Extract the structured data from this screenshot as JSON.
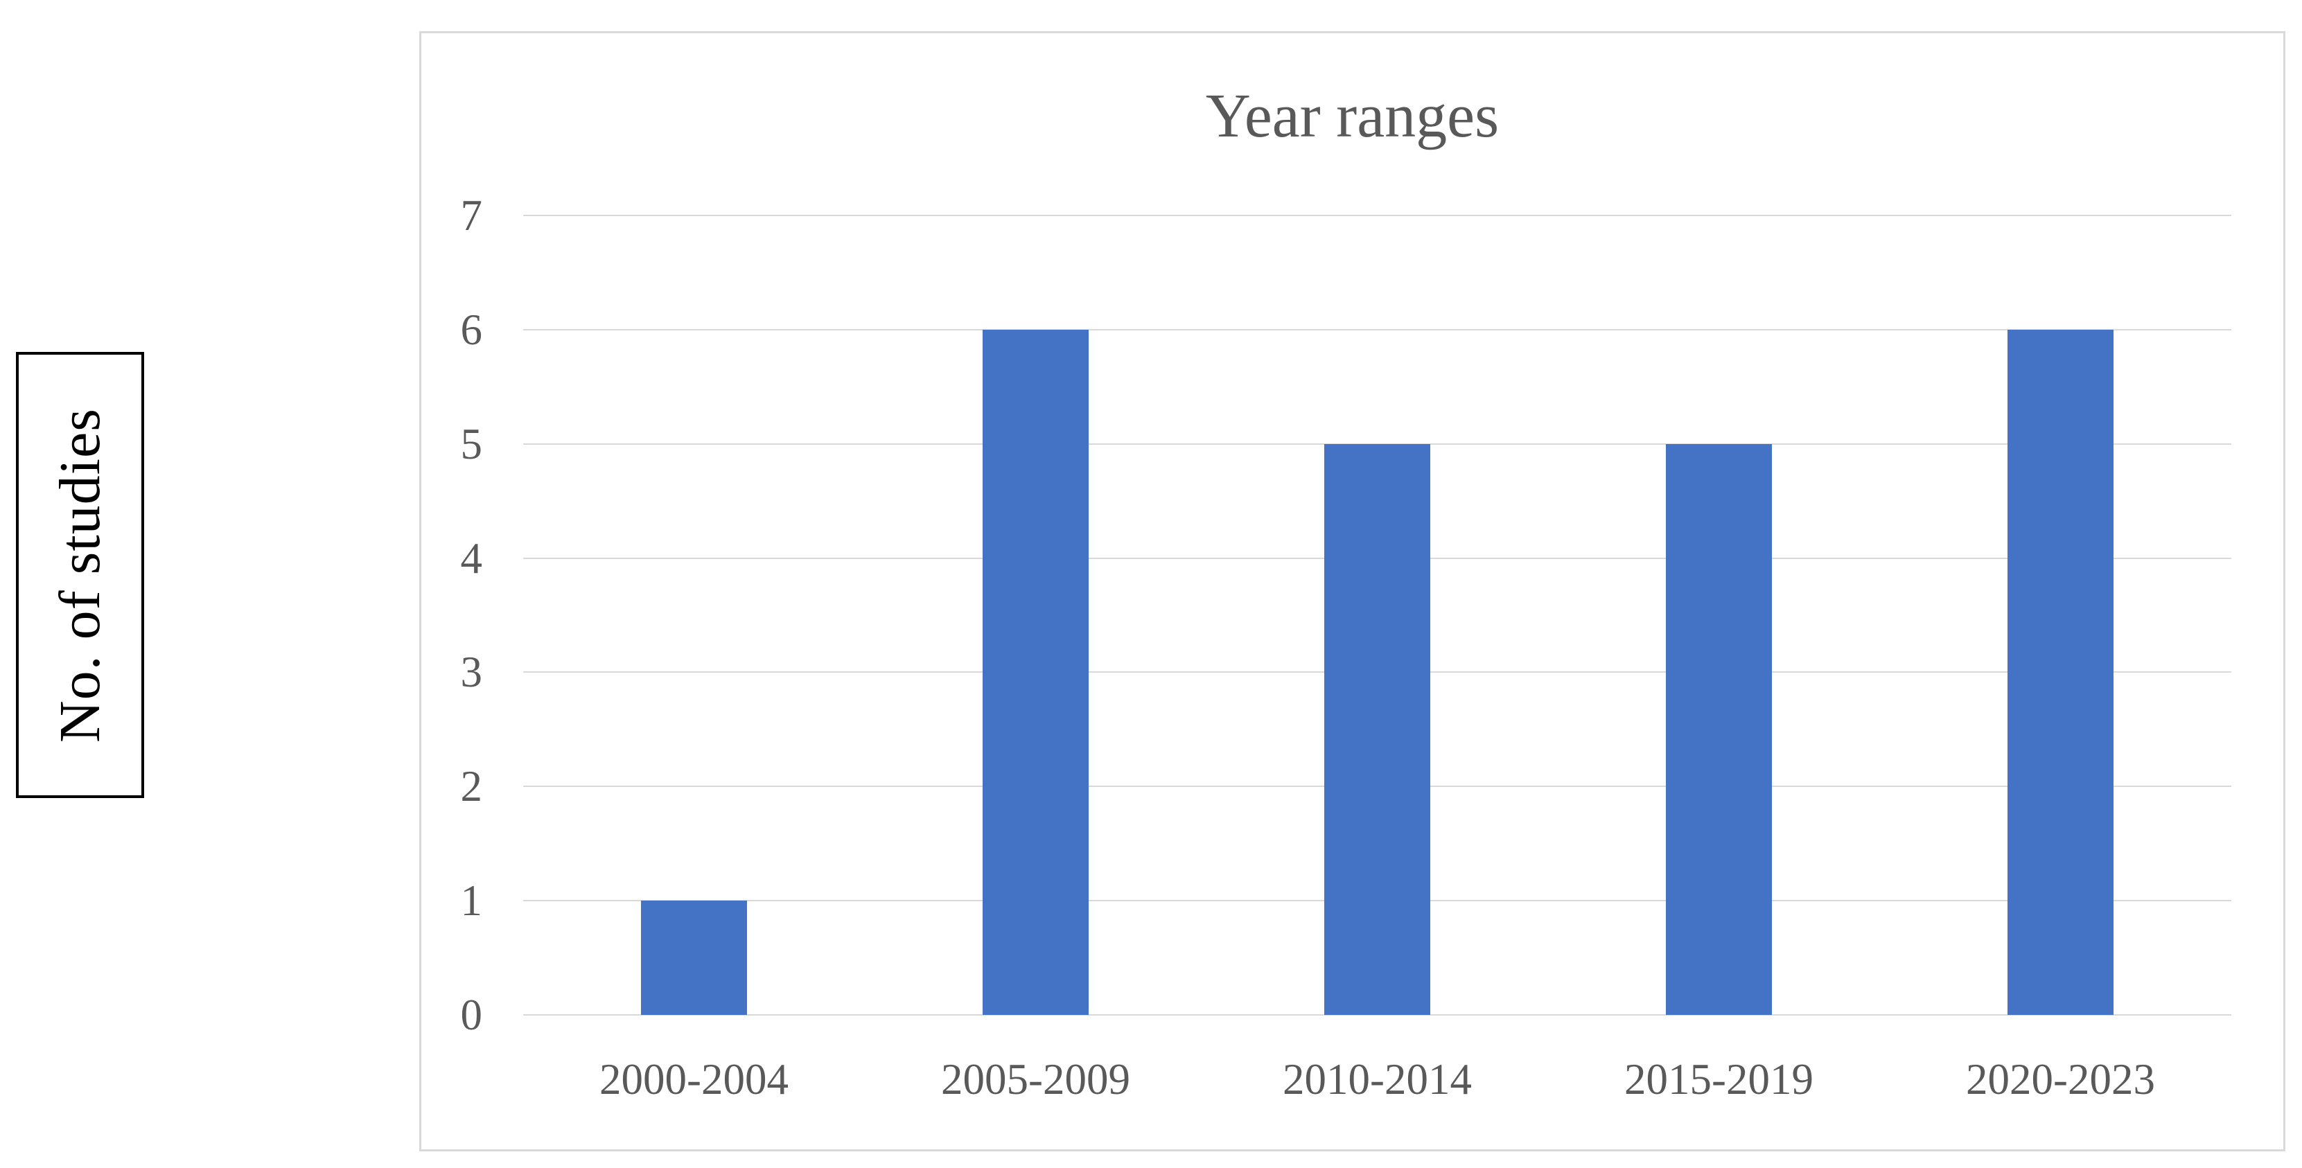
{
  "figure": {
    "background": "#ffffff"
  },
  "colors": {
    "bar": "#4472C4",
    "gridline": "#d9d9d9",
    "chart_border": "#d9d9d9",
    "axis_text": "#595959",
    "title_text": "#595959",
    "ylabel_text": "#000000",
    "ylabel_box_border": "#000000"
  },
  "chart_data": {
    "type": "bar",
    "title": "Year ranges",
    "xlabel": "",
    "ylabel": "No. of studies",
    "categories": [
      "2000-2004",
      "2005-2009",
      "2010-2014",
      "2015-2019",
      "2020-2023"
    ],
    "values": [
      1,
      6,
      5,
      5,
      6
    ],
    "series": [
      {
        "name": "No. of studies",
        "values": [
          1,
          6,
          5,
          5,
          6
        ]
      }
    ],
    "ylim": [
      0,
      7
    ],
    "y_ticks": [
      0,
      1,
      2,
      3,
      4,
      5,
      6,
      7
    ],
    "grid": true,
    "legend_position": "none",
    "bar_color": "#4472C4"
  }
}
